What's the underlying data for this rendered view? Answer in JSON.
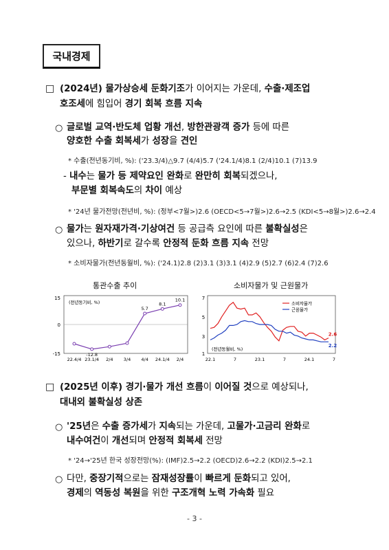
{
  "section_title": "국내경제",
  "s1": {
    "bullet": "□",
    "l1": [
      {
        "t": "(2024년) ",
        "b": true
      },
      {
        "t": "물가상승세 둔화기조",
        "b": true
      },
      {
        "t": "가 이어지는 가운데, "
      },
      {
        "t": "수출·제조업",
        "b": true
      }
    ],
    "l2": [
      {
        "t": "호조세",
        "b": true
      },
      {
        "t": "에 힘입어 "
      },
      {
        "t": "경기 회복 흐름 지속",
        "b": true
      }
    ]
  },
  "c1": {
    "bullet": "○",
    "l1": [
      {
        "t": "글로벌 교역·반도체 업황 개선",
        "b": true
      },
      {
        "t": ", "
      },
      {
        "t": "방한관광객 증가",
        "b": true
      },
      {
        "t": " 등에 따른"
      }
    ],
    "l2": [
      {
        "t": "양호한 수출 회복세",
        "b": true
      },
      {
        "t": "가 "
      },
      {
        "t": "성장",
        "b": true
      },
      {
        "t": "을 "
      },
      {
        "t": "견인",
        "b": true
      }
    ],
    "note": "* 수출(전년동기비, %): ('23.3/4)△9.7  (4/4)5.7  ('24.1/4)8.1  (2/4)10.1  (7)13.9",
    "dash_l1": [
      {
        "t": "- "
      },
      {
        "t": "내수",
        "b": true
      },
      {
        "t": "는 "
      },
      {
        "t": "물가 등 제약요인 완화",
        "b": true
      },
      {
        "t": "로 "
      },
      {
        "t": "완만히 회복",
        "b": true
      },
      {
        "t": "되겠으나,"
      }
    ],
    "dash_l2": [
      {
        "t": "부문별 회복속도",
        "b": true
      },
      {
        "t": "의 "
      },
      {
        "t": "차이",
        "b": true
      },
      {
        "t": " 예상"
      }
    ],
    "note2": "* '24년 물가전망(전년비, %): (정부<7월>)2.6  (OECD<5→7월>)2.6→2.5  (KDI<5→8월>)2.6→2.4"
  },
  "c2": {
    "bullet": "○",
    "l1": [
      {
        "t": "물가",
        "b": true
      },
      {
        "t": "는 "
      },
      {
        "t": "원자재가격·기상여건",
        "b": true
      },
      {
        "t": " 등 공급측 요인에 따른 "
      },
      {
        "t": "불확실성",
        "b": true
      },
      {
        "t": "은"
      }
    ],
    "l2": [
      {
        "t": "있으나, "
      },
      {
        "t": "하반기",
        "b": true
      },
      {
        "t": "로 갈수록 "
      },
      {
        "t": "안정적 둔화 흐름 지속",
        "b": true
      },
      {
        "t": " 전망"
      }
    ],
    "note": "* 소비자물가(전년동월비, %): ('24.1)2.8  (2)3.1  (3)3.1  (4)2.9  (5)2.7  (6)2.4  (7)2.6"
  },
  "chart_data": [
    {
      "type": "line",
      "title": "통관수출 추이",
      "unit_label": "(전년동기비, %)",
      "categories": [
        "22.4/4",
        "23.1/4",
        "2/4",
        "3/4",
        "4/4",
        "24.1/4",
        "2/4"
      ],
      "values": [
        -10.0,
        -12.8,
        -11.5,
        -9.7,
        5.7,
        8.1,
        10.1
      ],
      "data_labels": {
        "1": "-12.8",
        "4": "5.7",
        "5": "8.1",
        "6": "10.1"
      },
      "ylim": [
        -15,
        15
      ],
      "yticks": [
        "15",
        "0",
        "-15"
      ],
      "color": "#7a3fb0"
    },
    {
      "type": "line",
      "title": "소비자물가 및 근원물가",
      "unit_label": "(전년동월비, %)",
      "x_ticks": [
        "22.1",
        "7",
        "23.1",
        "7",
        "24.1",
        "7"
      ],
      "ylim": [
        1,
        7
      ],
      "yticks": [
        "7",
        "5",
        "3",
        "1"
      ],
      "series": [
        {
          "name": "소비자물가",
          "color": "#e02020",
          "end_label": "2.6",
          "values": [
            3.6,
            3.7,
            4.1,
            4.8,
            5.4,
            6.0,
            6.3,
            5.7,
            5.6,
            5.7,
            5.0,
            5.0,
            5.2,
            4.8,
            4.2,
            3.7,
            3.3,
            2.7,
            2.3,
            3.4,
            3.7,
            3.8,
            3.8,
            3.3,
            3.2,
            2.8,
            3.1,
            3.1,
            2.9,
            2.7,
            2.4,
            2.6
          ]
        },
        {
          "name": "근원물가",
          "color": "#2040c0",
          "end_label": "2.2",
          "values": [
            2.4,
            2.6,
            2.9,
            3.1,
            3.4,
            3.9,
            3.9,
            4.0,
            4.3,
            4.4,
            4.3,
            4.3,
            4.1,
            4.0,
            4.0,
            4.0,
            3.9,
            3.5,
            3.3,
            3.3,
            3.1,
            3.2,
            2.9,
            2.8,
            2.6,
            2.5,
            2.4,
            2.4,
            2.3,
            2.2,
            2.2,
            2.2
          ]
        }
      ]
    }
  ],
  "s2": {
    "bullet": "□",
    "l1": [
      {
        "t": "(2025년 이후) ",
        "b": true
      },
      {
        "t": "경기·물가 개선 흐름",
        "b": true
      },
      {
        "t": "이 "
      },
      {
        "t": "이어질 것",
        "b": true
      },
      {
        "t": "으로 예상되나,"
      }
    ],
    "l2": [
      {
        "t": "대내외 불확실성 상존",
        "b": true
      }
    ]
  },
  "c3": {
    "bullet": "○",
    "l1": [
      {
        "t": "'25년",
        "b": true
      },
      {
        "t": "은 "
      },
      {
        "t": "수출 증가세",
        "b": true
      },
      {
        "t": "가 "
      },
      {
        "t": "지속",
        "b": true
      },
      {
        "t": "되는 가운데, "
      },
      {
        "t": "고물가·고금리 완화",
        "b": true
      },
      {
        "t": "로"
      }
    ],
    "l2": [
      {
        "t": "내수여건",
        "b": true
      },
      {
        "t": "이 "
      },
      {
        "t": "개선",
        "b": true
      },
      {
        "t": "되며 "
      },
      {
        "t": "안정적 회복세",
        "b": true
      },
      {
        "t": " 전망"
      }
    ],
    "note": "* '24→'25년 한국 성장전망(%): (IMF)2.5→2.2  (OECD)2.6→2.2  (KDI)2.5→2.1"
  },
  "c4": {
    "bullet": "○",
    "l1": [
      {
        "t": "다만, "
      },
      {
        "t": "중장기적",
        "b": true
      },
      {
        "t": "으로는 "
      },
      {
        "t": "잠재성장률",
        "b": true
      },
      {
        "t": "이 "
      },
      {
        "t": "빠르게 둔화",
        "b": true
      },
      {
        "t": "되고 있어,"
      }
    ],
    "l2": [
      {
        "t": "경제",
        "b": true
      },
      {
        "t": "의 "
      },
      {
        "t": "역동성 복원",
        "b": true
      },
      {
        "t": "을 위한 "
      },
      {
        "t": "구조개혁 노력 가속화",
        "b": true
      },
      {
        "t": " 필요"
      }
    ]
  },
  "page_number": "- 3 -"
}
